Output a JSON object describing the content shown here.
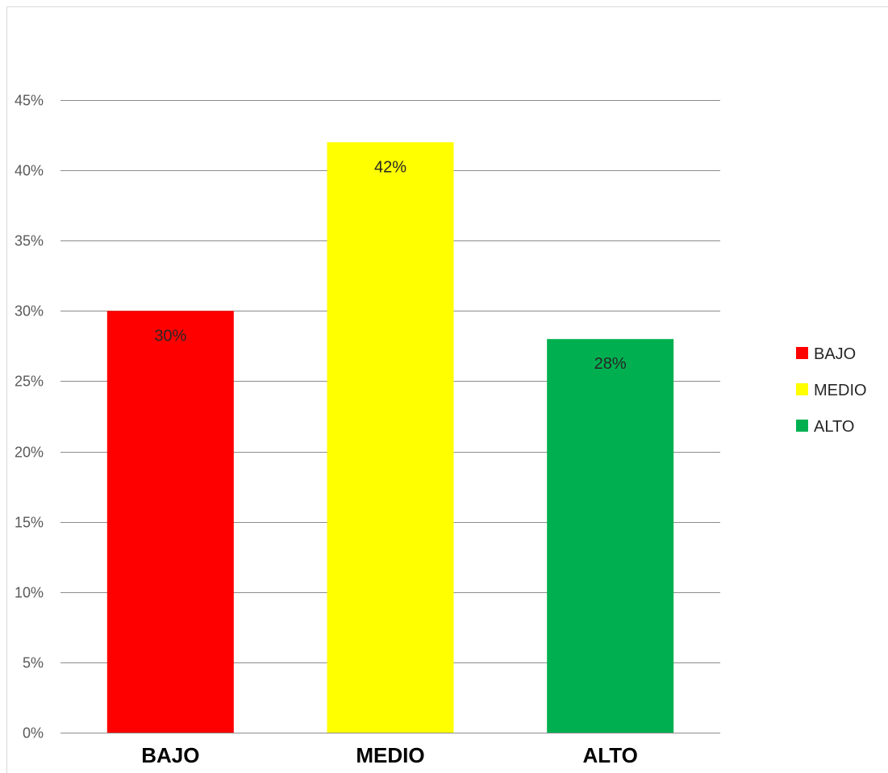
{
  "chart_data": {
    "type": "bar",
    "categories": [
      "BAJO",
      "MEDIO",
      "ALTO"
    ],
    "values": [
      30,
      42,
      28
    ],
    "data_labels": [
      "30%",
      "42%",
      "28%"
    ],
    "colors": [
      "#ff0000",
      "#ffff00",
      "#00b050"
    ],
    "ylim": [
      0,
      45
    ],
    "y_ticks": [
      0,
      5,
      10,
      15,
      20,
      25,
      30,
      35,
      40,
      45
    ],
    "y_tick_labels": [
      "0%",
      "5%",
      "10%",
      "15%",
      "20%",
      "25%",
      "30%",
      "35%",
      "40%",
      "45%"
    ],
    "grid": true,
    "legend": {
      "placement": "right",
      "entries": [
        "BAJO",
        "MEDIO",
        "ALTO"
      ]
    },
    "title": "",
    "xlabel": "",
    "ylabel": ""
  }
}
